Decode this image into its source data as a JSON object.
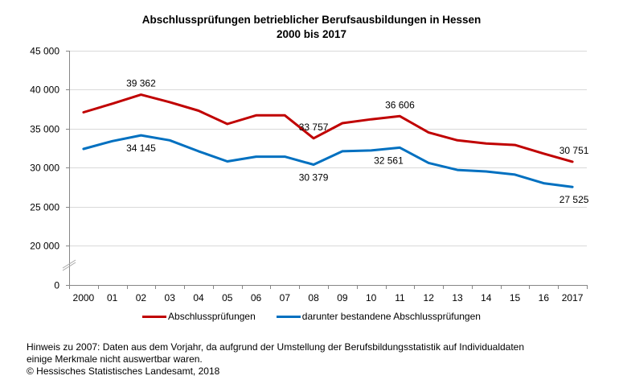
{
  "chart_data": {
    "type": "line",
    "title": "Abschlussprüfungen betrieblicher Berufsausbildungen in Hessen",
    "subtitle": "2000 bis 2017",
    "xlabel": "",
    "ylabel": "",
    "categories": [
      "2000",
      "01",
      "02",
      "03",
      "04",
      "05",
      "06",
      "07",
      "08",
      "09",
      "10",
      "11",
      "12",
      "13",
      "14",
      "15",
      "16",
      "2017"
    ],
    "y_ticks": [
      0,
      20000,
      25000,
      30000,
      35000,
      40000,
      45000
    ],
    "y_tick_labels": [
      "0",
      "20 000",
      "25 000",
      "30 000",
      "35 000",
      "40 000",
      "45 000"
    ],
    "ylim": [
      0,
      45000
    ],
    "axis_break": "between 0 and 20000",
    "grid": true,
    "legend_position": "bottom",
    "series": [
      {
        "name": "Abschlussprüfungen",
        "color": "#C00000",
        "values": [
          37100,
          38200,
          39362,
          38400,
          37300,
          35600,
          36700,
          36700,
          33757,
          35700,
          36200,
          36606,
          34500,
          33500,
          33100,
          32900,
          31800,
          30751
        ],
        "labels": [
          {
            "index": 2,
            "text": "39 362",
            "pos": "above"
          },
          {
            "index": 8,
            "text": "33 757",
            "pos": "above"
          },
          {
            "index": 11,
            "text": "36 606",
            "pos": "above"
          },
          {
            "index": 17,
            "text": "30 751",
            "pos": "above"
          }
        ]
      },
      {
        "name": "darunter bestandene Abschlussprüfungen",
        "color": "#0070C0",
        "values": [
          32400,
          33400,
          34145,
          33500,
          32100,
          30800,
          31400,
          31400,
          30379,
          32100,
          32200,
          32561,
          30600,
          29700,
          29500,
          29100,
          28000,
          27525
        ],
        "labels": [
          {
            "index": 2,
            "text": "34 145",
            "pos": "below"
          },
          {
            "index": 8,
            "text": "30 379",
            "pos": "below"
          },
          {
            "index": 11,
            "text": "32 561",
            "pos": "below-left"
          },
          {
            "index": 17,
            "text": "27 525",
            "pos": "below"
          }
        ]
      }
    ]
  },
  "footnote": {
    "line1": "Hinweis zu 2007: Daten aus dem Vorjahr, da aufgrund  der Umstellung der Berufsbildungsstatistik auf Individualdaten",
    "line2": "einige Merkmale  nicht auswertbar  waren.",
    "line3": "© Hessisches Statistisches Landesamt, 2018"
  }
}
